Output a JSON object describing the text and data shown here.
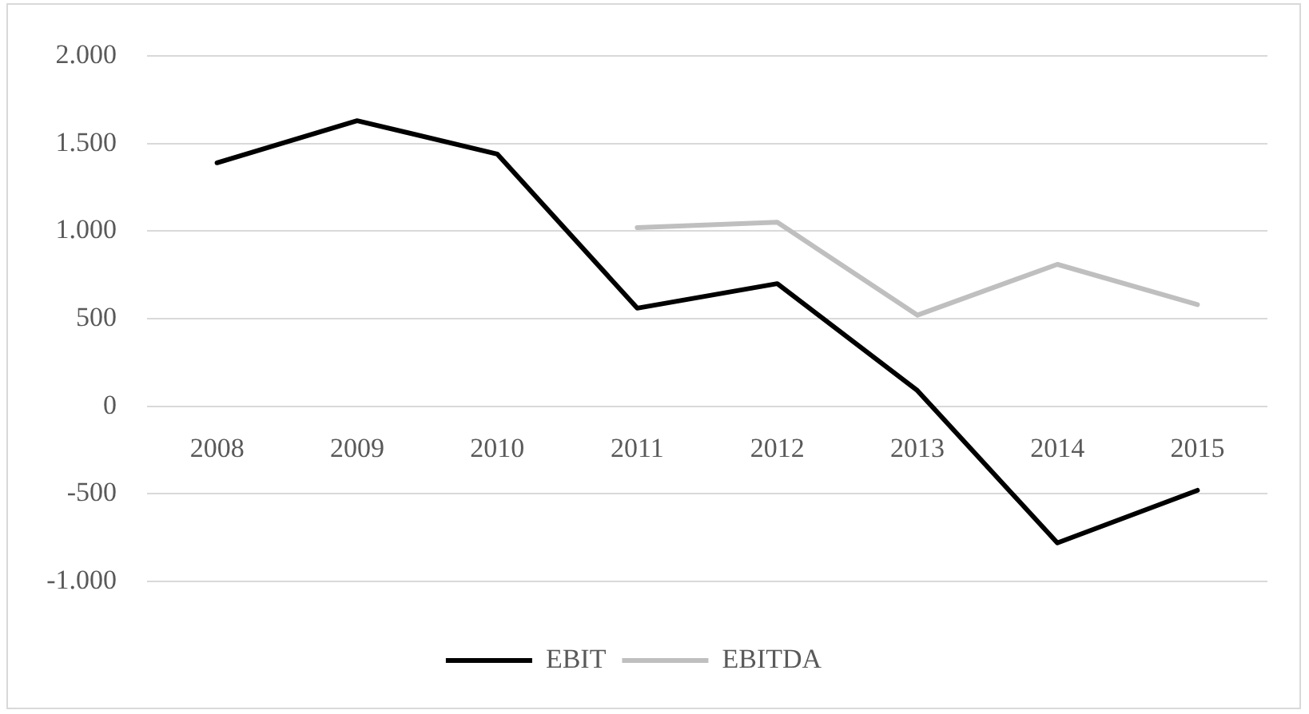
{
  "chart_data": {
    "type": "line",
    "categories": [
      "2008",
      "2009",
      "2010",
      "2011",
      "2012",
      "2013",
      "2014",
      "2015"
    ],
    "series": [
      {
        "name": "EBIT",
        "color": "#000000",
        "values": [
          1390,
          1630,
          1440,
          560,
          700,
          90,
          -780,
          -480
        ]
      },
      {
        "name": "EBITDA",
        "color": "#bfbfbf",
        "values": [
          null,
          null,
          null,
          1020,
          1050,
          520,
          810,
          580
        ]
      }
    ],
    "ylim": [
      -1000,
      2000
    ],
    "yticks": [
      {
        "value": -1000,
        "label": "-1.000"
      },
      -500,
      0,
      500,
      {
        "value": 1000,
        "label": "1.000"
      },
      {
        "value": 1500,
        "label": "1.500"
      },
      {
        "value": 2000,
        "label": "2.000"
      }
    ],
    "grid": "y",
    "legend": "bottom",
    "marker": "none",
    "line_style": "solid"
  }
}
